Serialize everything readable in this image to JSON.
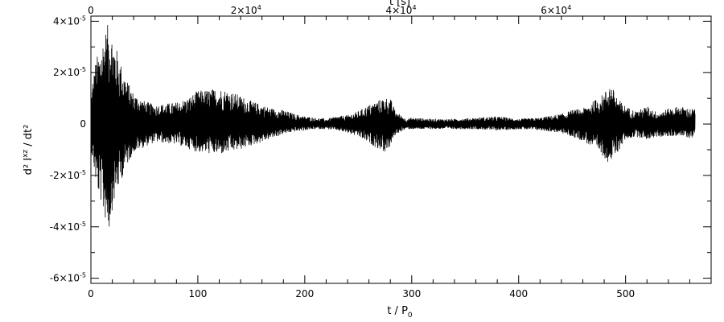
{
  "chart_data": {
    "type": "line",
    "title": "",
    "xlabel": "t / P",
    "xlabel_sub": "0",
    "ylabel": "d² I",
    "ylabel_sup": "xz",
    "ylabel_tail": " / dt²",
    "top_xlabel": "t [s]",
    "xlim": [
      0,
      580
    ],
    "ylim": [
      -6.2e-05,
      4.2e-05
    ],
    "grid": false,
    "legend": "none",
    "color": "#000000",
    "x_ticks": [
      {
        "value": 0,
        "label": "0"
      },
      {
        "value": 100,
        "label": "100"
      },
      {
        "value": 200,
        "label": "200"
      },
      {
        "value": 300,
        "label": "300"
      },
      {
        "value": 400,
        "label": "400"
      },
      {
        "value": 500,
        "label": "500"
      }
    ],
    "top_ticks": [
      {
        "value": 0,
        "mantissa": "0",
        "exp": ""
      },
      {
        "value": 145,
        "mantissa": "2×10",
        "exp": "4"
      },
      {
        "value": 290,
        "mantissa": "4×10",
        "exp": "4"
      },
      {
        "value": 435,
        "mantissa": "6×10",
        "exp": "4"
      }
    ],
    "y_ticks": [
      {
        "value": 4e-05,
        "mantissa": "4×10",
        "exp": "-5"
      },
      {
        "value": 2e-05,
        "mantissa": "2×10",
        "exp": "-5"
      },
      {
        "value": 0,
        "mantissa": "0",
        "exp": ""
      },
      {
        "value": -2e-05,
        "mantissa": "-2×10",
        "exp": "-5"
      },
      {
        "value": -4e-05,
        "mantissa": "-4×10",
        "exp": "-5"
      },
      {
        "value": -6e-05,
        "mantissa": "-6×10",
        "exp": "-5"
      }
    ],
    "series": [
      {
        "x": [
          0,
          2,
          5,
          8,
          10,
          12,
          15,
          17,
          20,
          25,
          30,
          35,
          40,
          50,
          60,
          70,
          80,
          90,
          100,
          110,
          120,
          130,
          140,
          150,
          160,
          170,
          180,
          190,
          200,
          210,
          220,
          230,
          240,
          250,
          260,
          270,
          275,
          280,
          285,
          290,
          295,
          300,
          320,
          340,
          360,
          380,
          400,
          420,
          440,
          450,
          460,
          470,
          480,
          485,
          490,
          495,
          500,
          510,
          520,
          530,
          540,
          550,
          560,
          565
        ],
        "upper": [
          1e-05,
          1.8e-05,
          2.6e-05,
          2.8e-05,
          3.1e-05,
          3.5e-05,
          3.8e-05,
          4e-05,
          3.5e-05,
          2.8e-05,
          2.1e-05,
          1.6e-05,
          1.2e-05,
          9e-06,
          7.5e-06,
          8e-06,
          8.5e-06,
          1e-05,
          1.3e-05,
          1.35e-05,
          1.4e-05,
          1.3e-05,
          1.1e-05,
          9e-06,
          7.5e-06,
          6e-06,
          5.5e-06,
          4e-06,
          3e-06,
          2.5e-06,
          2e-06,
          3e-06,
          3.5e-06,
          5e-06,
          7.5e-06,
          9.5e-06,
          1.05e-05,
          1e-05,
          5e-06,
          3.5e-06,
          2e-06,
          2.5e-06,
          2e-06,
          2e-06,
          2.5e-06,
          3e-06,
          2e-06,
          2.5e-06,
          4e-06,
          5.5e-06,
          6e-06,
          9e-06,
          1.2e-05,
          1.6e-05,
          1.25e-05,
          9e-06,
          7e-06,
          5e-06,
          7e-06,
          4.5e-06,
          6e-06,
          7e-06,
          6e-06,
          6e-06
        ],
        "lower": [
          -1e-05,
          -1.5e-05,
          -2.4e-05,
          -2.9e-05,
          -3.1e-05,
          -3.6e-05,
          -3.9e-05,
          -4.2e-05,
          -3.3e-05,
          -2.6e-05,
          -2e-05,
          -1.5e-05,
          -1.1e-05,
          -9e-06,
          -7e-06,
          -7.5e-06,
          -8e-06,
          -9.5e-06,
          -1.1e-05,
          -1.15e-05,
          -1.2e-05,
          -1.1e-05,
          -1e-05,
          -8.5e-06,
          -7e-06,
          -5.5e-06,
          -4e-06,
          -3e-06,
          -2.5e-06,
          -2e-06,
          -2e-06,
          -2.5e-06,
          -3.5e-06,
          -5e-06,
          -7.5e-06,
          -1e-05,
          -1.1e-05,
          -9e-06,
          -4e-06,
          -3e-06,
          -2e-06,
          -2e-06,
          -2e-06,
          -2e-06,
          -2e-06,
          -2.5e-06,
          -2e-06,
          -2.5e-06,
          -3.5e-06,
          -5e-06,
          -6.5e-06,
          -9.5e-06,
          -1.3e-05,
          -1.55e-05,
          -1.3e-05,
          -9.5e-06,
          -6e-06,
          -5e-06,
          -6e-06,
          -5e-06,
          -5e-06,
          -4.5e-06,
          -5.5e-06,
          -5e-06
        ]
      }
    ]
  }
}
